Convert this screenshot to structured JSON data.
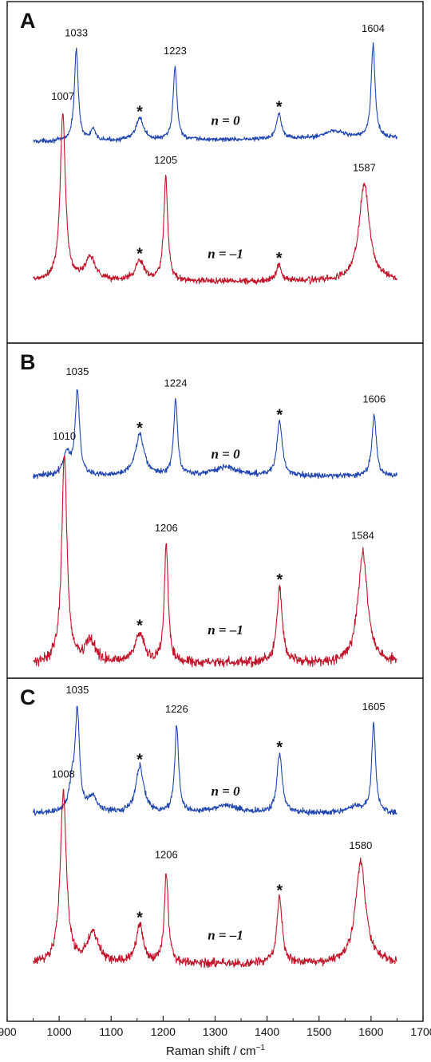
{
  "chart_data": {
    "type": "line",
    "xlabel": "Raman shift / cm",
    "xlabel_sup": "−1",
    "xlim": [
      900,
      1700
    ],
    "xticks": [
      900,
      1000,
      1100,
      1200,
      1300,
      1400,
      1500,
      1600,
      1700
    ],
    "x_range_data": [
      950,
      1650
    ],
    "colors": {
      "n0": "#2146b0",
      "n_minus1": "#c0152a"
    },
    "star_label": "*",
    "panels": [
      {
        "label": "A",
        "series": [
          {
            "name": "n = 0",
            "color_key": "n0",
            "baseline": 0.09,
            "slope": 0.03,
            "noise": 0.012,
            "peaks": [
              {
                "x": 1033,
                "h": 0.82,
                "w": 4.5,
                "label": "1033"
              },
              {
                "x": 1065,
                "h": 0.1,
                "w": 5
              },
              {
                "x": 1155,
                "h": 0.2,
                "w": 9,
                "star": true
              },
              {
                "x": 1223,
                "h": 0.65,
                "w": 4.5,
                "label": "1223"
              },
              {
                "x": 1423,
                "h": 0.23,
                "w": 6,
                "star": true
              },
              {
                "x": 1530,
                "h": 0.07,
                "w": 25
              },
              {
                "x": 1604,
                "h": 0.83,
                "w": 4.5,
                "label": "1604"
              }
            ]
          },
          {
            "name": "n = –1",
            "color_key": "n_minus1",
            "baseline": 0.14,
            "slope": 0.0,
            "noise": 0.012,
            "peaks": [
              {
                "x": 1007,
                "h": 1.0,
                "w": 6,
                "label": "1007"
              },
              {
                "x": 1060,
                "h": 0.14,
                "w": 12
              },
              {
                "x": 1155,
                "h": 0.12,
                "w": 10,
                "star": true
              },
              {
                "x": 1205,
                "h": 0.62,
                "w": 4.5,
                "label": "1205"
              },
              {
                "x": 1423,
                "h": 0.1,
                "w": 6,
                "star": true
              },
              {
                "x": 1587,
                "h": 0.58,
                "w": 12,
                "label": "1587"
              }
            ]
          }
        ]
      },
      {
        "label": "B",
        "series": [
          {
            "name": "n = 0",
            "color_key": "n0",
            "baseline": 0.1,
            "slope": 0.0,
            "noise": 0.014,
            "peaks": [
              {
                "x": 1015,
                "h": 0.18,
                "w": 8
              },
              {
                "x": 1035,
                "h": 0.7,
                "w": 5,
                "label": "1035"
              },
              {
                "x": 1155,
                "h": 0.34,
                "w": 10,
                "star": true
              },
              {
                "x": 1224,
                "h": 0.62,
                "w": 4.5,
                "label": "1224"
              },
              {
                "x": 1320,
                "h": 0.07,
                "w": 30
              },
              {
                "x": 1424,
                "h": 0.45,
                "w": 6,
                "star": true
              },
              {
                "x": 1606,
                "h": 0.5,
                "w": 5,
                "label": "1606"
              }
            ]
          },
          {
            "name": "n = –1",
            "color_key": "n_minus1",
            "baseline": 0.1,
            "slope": 0.0,
            "noise": 0.014,
            "peaks": [
              {
                "x": 1010,
                "h": 0.98,
                "w": 6,
                "label": "1010"
              },
              {
                "x": 1060,
                "h": 0.1,
                "w": 12
              },
              {
                "x": 1155,
                "h": 0.14,
                "w": 10,
                "star": true
              },
              {
                "x": 1206,
                "h": 0.55,
                "w": 4.5,
                "label": "1206"
              },
              {
                "x": 1424,
                "h": 0.36,
                "w": 6,
                "star": true
              },
              {
                "x": 1584,
                "h": 0.52,
                "w": 11,
                "label": "1584"
              }
            ]
          }
        ]
      },
      {
        "label": "C",
        "series": [
          {
            "name": "n = 0",
            "color_key": "n0",
            "baseline": 0.1,
            "slope": 0.0,
            "noise": 0.015,
            "peaks": [
              {
                "x": 1025,
                "h": 0.22,
                "w": 7
              },
              {
                "x": 1035,
                "h": 0.78,
                "w": 5,
                "label": "1035"
              },
              {
                "x": 1065,
                "h": 0.12,
                "w": 10
              },
              {
                "x": 1155,
                "h": 0.38,
                "w": 9,
                "star": true
              },
              {
                "x": 1226,
                "h": 0.7,
                "w": 4.5,
                "label": "1226"
              },
              {
                "x": 1320,
                "h": 0.06,
                "w": 30
              },
              {
                "x": 1424,
                "h": 0.48,
                "w": 6,
                "star": true
              },
              {
                "x": 1570,
                "h": 0.06,
                "w": 15
              },
              {
                "x": 1605,
                "h": 0.72,
                "w": 4.5,
                "label": "1605"
              }
            ]
          },
          {
            "name": "n = –1",
            "color_key": "n_minus1",
            "baseline": 0.1,
            "slope": 0.0,
            "noise": 0.015,
            "peaks": [
              {
                "x": 1008,
                "h": 0.98,
                "w": 7,
                "label": "1008"
              },
              {
                "x": 1065,
                "h": 0.18,
                "w": 12
              },
              {
                "x": 1155,
                "h": 0.22,
                "w": 8,
                "star": true
              },
              {
                "x": 1206,
                "h": 0.52,
                "w": 4.5,
                "label": "1206"
              },
              {
                "x": 1424,
                "h": 0.38,
                "w": 6,
                "star": true
              },
              {
                "x": 1580,
                "h": 0.58,
                "w": 12,
                "label": "1580"
              }
            ]
          }
        ]
      }
    ]
  }
}
